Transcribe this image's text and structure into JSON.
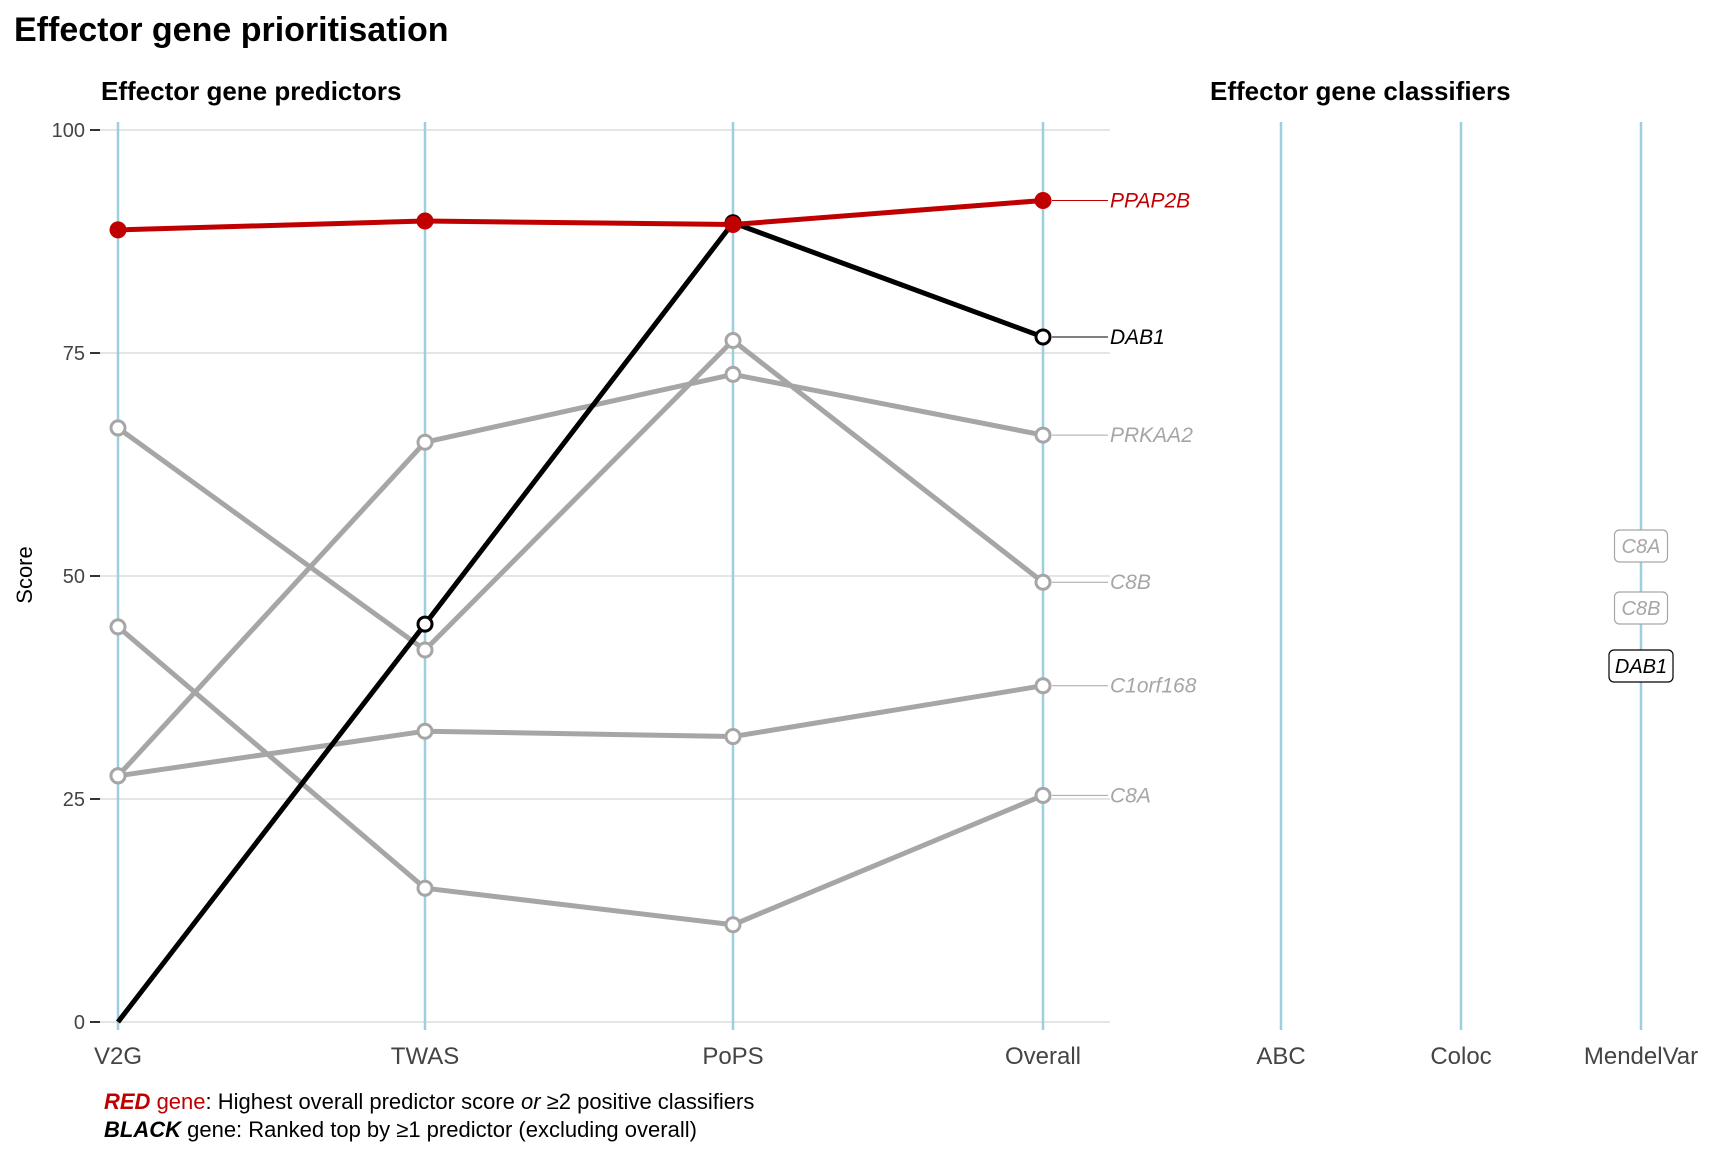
{
  "title": "Effector gene prioritisation",
  "left_panel": {
    "title": "Effector gene predictors"
  },
  "right_panel": {
    "title": "Effector gene classifiers"
  },
  "chart_data": {
    "type": "line",
    "ylabel": "Score",
    "ylim": [
      0,
      100
    ],
    "yticks": [
      0,
      25,
      50,
      75,
      100
    ],
    "categories": [
      "V2G",
      "TWAS",
      "PoPS",
      "Overall"
    ],
    "grid": true,
    "series": [
      {
        "name": "C8A",
        "color": "#a6a6a6",
        "values": [
          44.3,
          15.0,
          10.9,
          25.4
        ]
      },
      {
        "name": "C1orf168",
        "color": "#a6a6a6",
        "values": [
          27.6,
          32.6,
          32.0,
          37.7
        ]
      },
      {
        "name": "C8B",
        "color": "#a6a6a6",
        "values": [
          66.6,
          41.7,
          76.4,
          49.3
        ]
      },
      {
        "name": "PRKAA2",
        "color": "#a6a6a6",
        "values": [
          27.6,
          65.0,
          72.6,
          65.8
        ]
      },
      {
        "name": "DAB1",
        "color": "#000000",
        "values": [
          0,
          44.6,
          89.6,
          76.8
        ]
      },
      {
        "name": "PPAP2B",
        "color": "#c00000",
        "values": [
          88.8,
          89.8,
          89.4,
          92.1
        ]
      }
    ],
    "classifiers": {
      "categories": [
        "ABC",
        "Coloc",
        "MendelVar"
      ],
      "labels": [
        {
          "classifier": "MendelVar",
          "gene": "C8A",
          "color": "#a6a6a6"
        },
        {
          "classifier": "MendelVar",
          "gene": "C8B",
          "color": "#a6a6a6"
        },
        {
          "classifier": "MendelVar",
          "gene": "DAB1",
          "color": "#000000"
        }
      ]
    }
  },
  "notes": {
    "line1": {
      "red_word": "RED",
      "red_rest": " gene",
      "text_a": ": Highest overall predictor score ",
      "or_word": "or",
      "text_b": " ≥2 positive classifiers"
    },
    "line2": {
      "black_word": "BLACK",
      "text": " gene: Ranked top by ≥1 predictor (excluding overall)"
    }
  },
  "colors": {
    "red": "#c00000",
    "black": "#000000",
    "grey": "#a6a6a6",
    "axis_line": "#9ecfdc",
    "grid": "#e5e5e5"
  }
}
